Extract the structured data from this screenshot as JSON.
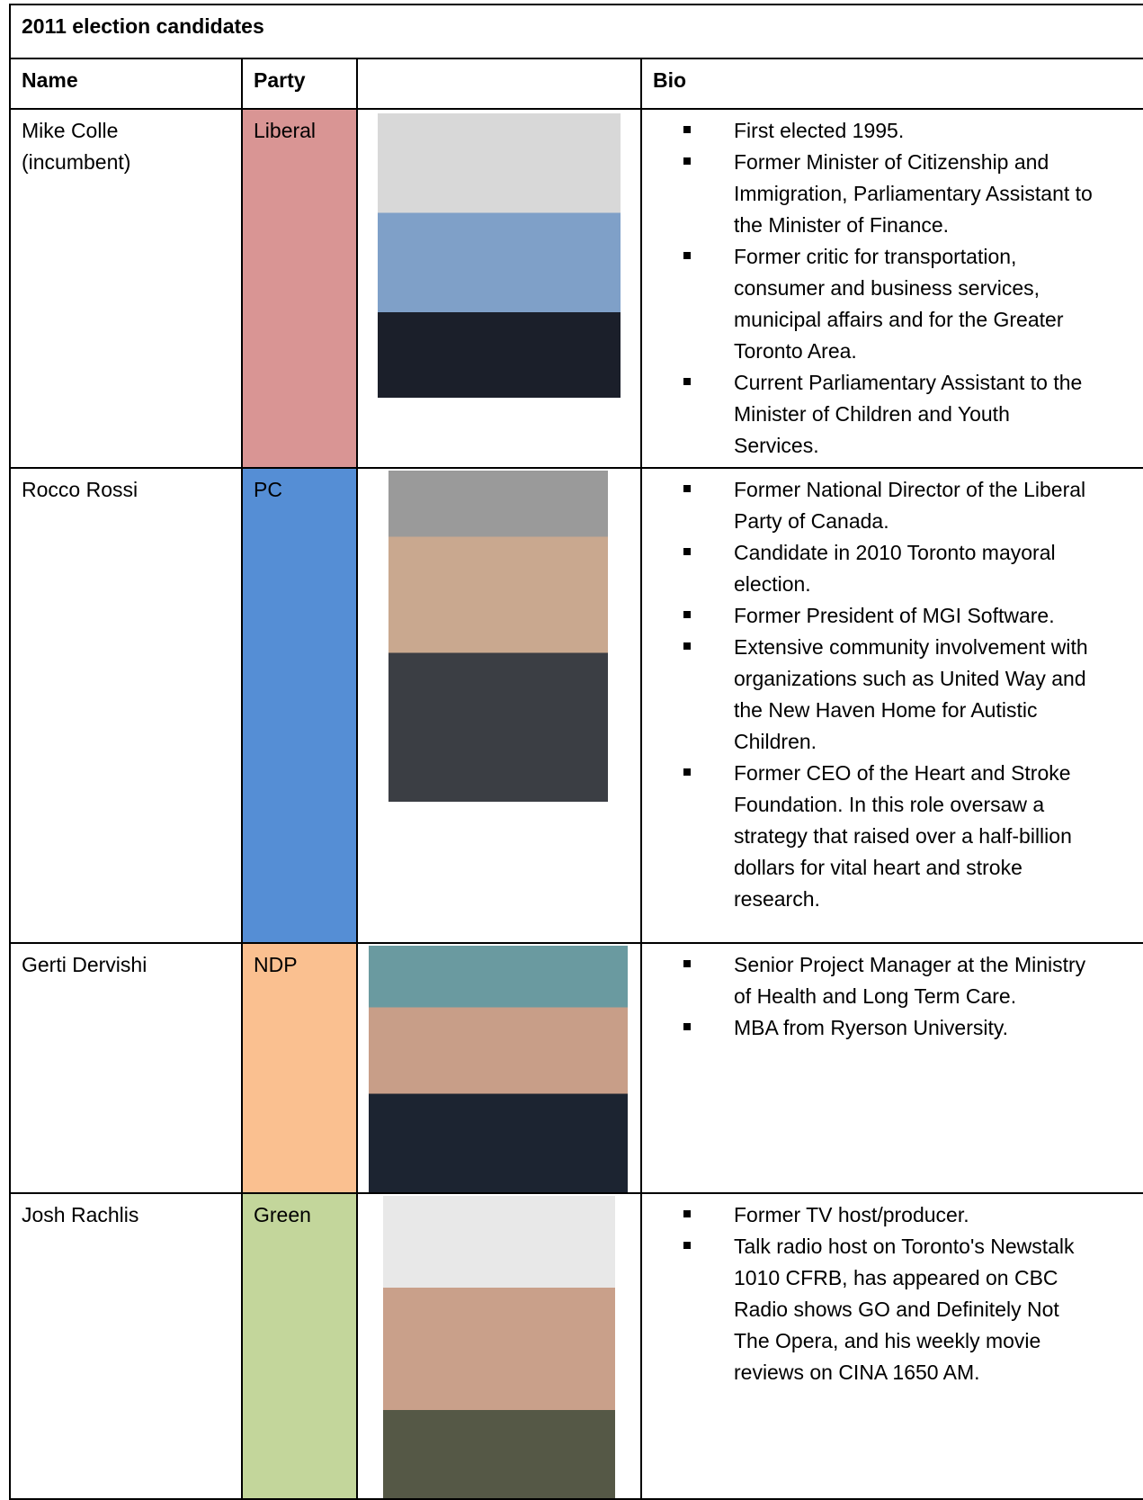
{
  "table": {
    "title": "2011 election candidates",
    "header": [
      "Name",
      "Party",
      "Bio"
    ],
    "rows": [
      {
        "name": "Mike Colle (incumbent)",
        "party": "Liberal",
        "color": "#d99594",
        "bio": [
          "First elected 1995.",
          "Former Minister of Citizenship and Immigration, Parliamentary Assistant to the Minister of Finance.",
          "Former critic for transportation, consumer and business services, municipal affairs and for the Greater Toronto Area.",
          "Current Parliamentary Assistant to the Minister of Children and Youth Services."
        ]
      },
      {
        "name": "Rocco Rossi",
        "party": "PC",
        "color": "#558ed5",
        "bio": [
          "Former National Director of the Liberal Party of Canada.",
          "Candidate in 2010 Toronto mayoral election.",
          "Former President of MGI Software.",
          "Extensive community involvement with organizations such as United Way and the New Haven Home for Autistic Children.",
          "Former CEO of the Heart and Stroke Foundation.  In this role oversaw a strategy that raised over a half-billion dollars for vital heart and stroke research."
        ]
      },
      {
        "name": "Gerti Dervishi",
        "party": "NDP",
        "color": "#fac090",
        "bio": [
          "Senior Project Manager at the Ministry of Health and Long Term Care.",
          "MBA from Ryerson University."
        ]
      },
      {
        "name": "Josh Rachlis",
        "party": "Green",
        "color": "#c3d69b",
        "bio": [
          "Former TV host/producer.",
          "Talk radio host on Toronto's Newstalk 1010 CFRB, has appeared on CBC Radio shows GO and Definitely Not The Opera, and his weekly movie reviews on CINA 1650 AM."
        ]
      }
    ]
  }
}
